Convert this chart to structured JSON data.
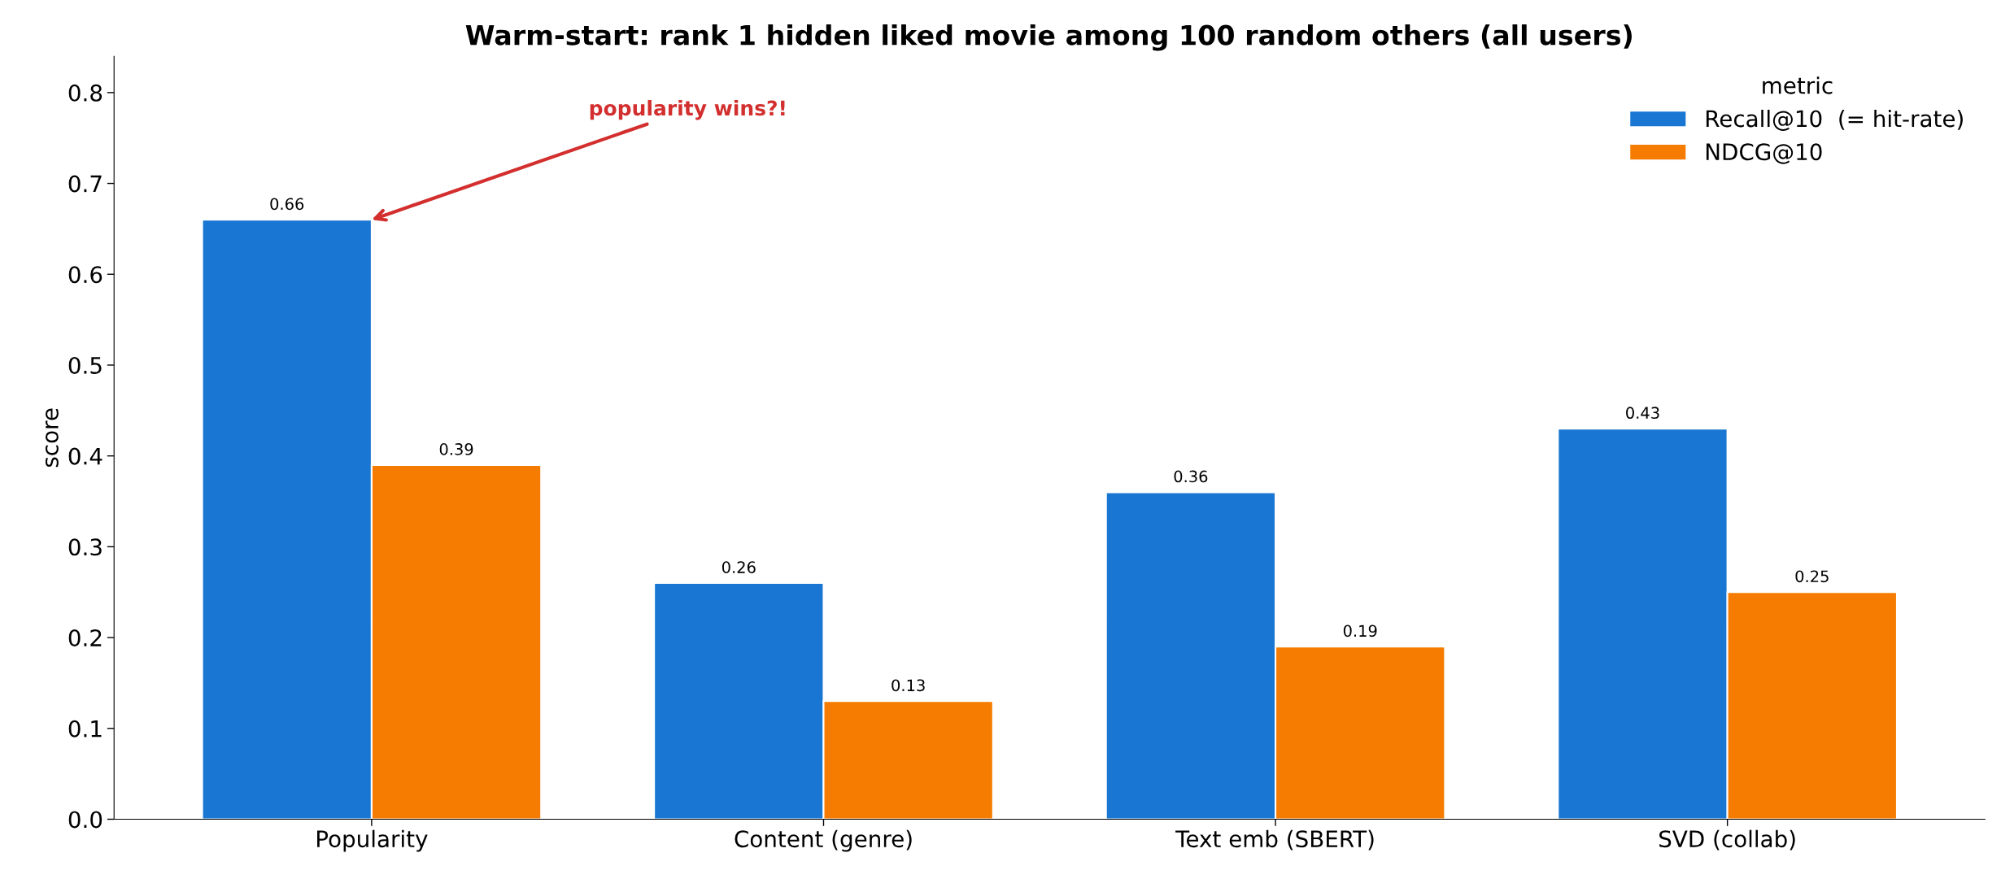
{
  "chart_data": {
    "type": "bar",
    "title": "Warm-start: rank 1 hidden liked movie among 100 random others (all users)",
    "ylabel": "score",
    "categories": [
      "Popularity",
      "Content (genre)",
      "Text emb (SBERT)",
      "SVD (collab)"
    ],
    "series": [
      {
        "name": "Recall@10  (= hit-rate)",
        "color": "#1976d2",
        "values": [
          0.66,
          0.26,
          0.36,
          0.43
        ]
      },
      {
        "name": "NDCG@10",
        "color": "#f57c00",
        "values": [
          0.39,
          0.13,
          0.19,
          0.25
        ]
      }
    ],
    "legend_title": "metric",
    "legend": "top right",
    "ylim": [
      0,
      0.84
    ],
    "yticks": [
      {
        "value": 0,
        "label": "0.0"
      },
      0.1,
      0.2,
      0.3,
      0.4,
      0.5,
      0.6,
      0.7,
      0.8
    ],
    "data_labels": true,
    "grid": false,
    "annotations": [
      {
        "text": "popularity wins?!",
        "x": "Popularity",
        "y": 0.66
      }
    ]
  }
}
